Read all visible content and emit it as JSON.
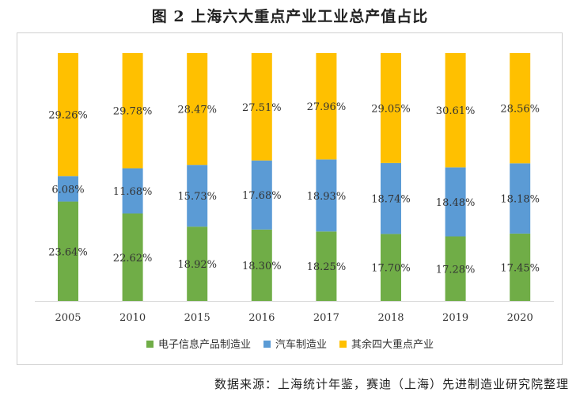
{
  "title": "图 2   上海六大重点产业工业总产值占比",
  "source": "数据来源：上海统计年鉴，赛迪（上海）先进制造业研究院整理",
  "chart_data": {
    "type": "bar",
    "stacked": true,
    "normalized_percent": true,
    "title": "图 2   上海六大重点产业工业总产值占比",
    "xlabel": "",
    "ylabel": "",
    "ylim": [
      0,
      100
    ],
    "grid": false,
    "legend_position": "bottom",
    "categories": [
      "2005",
      "2010",
      "2015",
      "2016",
      "2017",
      "2018",
      "2019",
      "2020"
    ],
    "series": [
      {
        "name": "电子信息产品制造业",
        "color": "#70AD47",
        "values": [
          23.64,
          22.62,
          18.92,
          18.3,
          18.25,
          17.7,
          17.28,
          17.45
        ],
        "labels": [
          "23.64%",
          "22.62%",
          "18.92%",
          "18.30%",
          "18.25%",
          "17.70%",
          "17.28%",
          "17.45%"
        ]
      },
      {
        "name": "汽车制造业",
        "color": "#5B9BD5",
        "values": [
          6.08,
          11.68,
          15.73,
          17.68,
          18.93,
          18.74,
          18.48,
          18.18
        ],
        "labels": [
          "6.08%",
          "11.68%",
          "15.73%",
          "17.68%",
          "18.93%",
          "18.74%",
          "18.48%",
          "18.18%"
        ]
      },
      {
        "name": "其余四大重点产业",
        "color": "#FFC000",
        "values": [
          29.26,
          29.78,
          28.47,
          27.51,
          27.96,
          29.05,
          30.61,
          28.56
        ],
        "labels": [
          "29.26%",
          "29.78%",
          "28.47%",
          "27.51%",
          "27.96%",
          "29.05%",
          "30.61%",
          "28.56%"
        ]
      }
    ]
  }
}
